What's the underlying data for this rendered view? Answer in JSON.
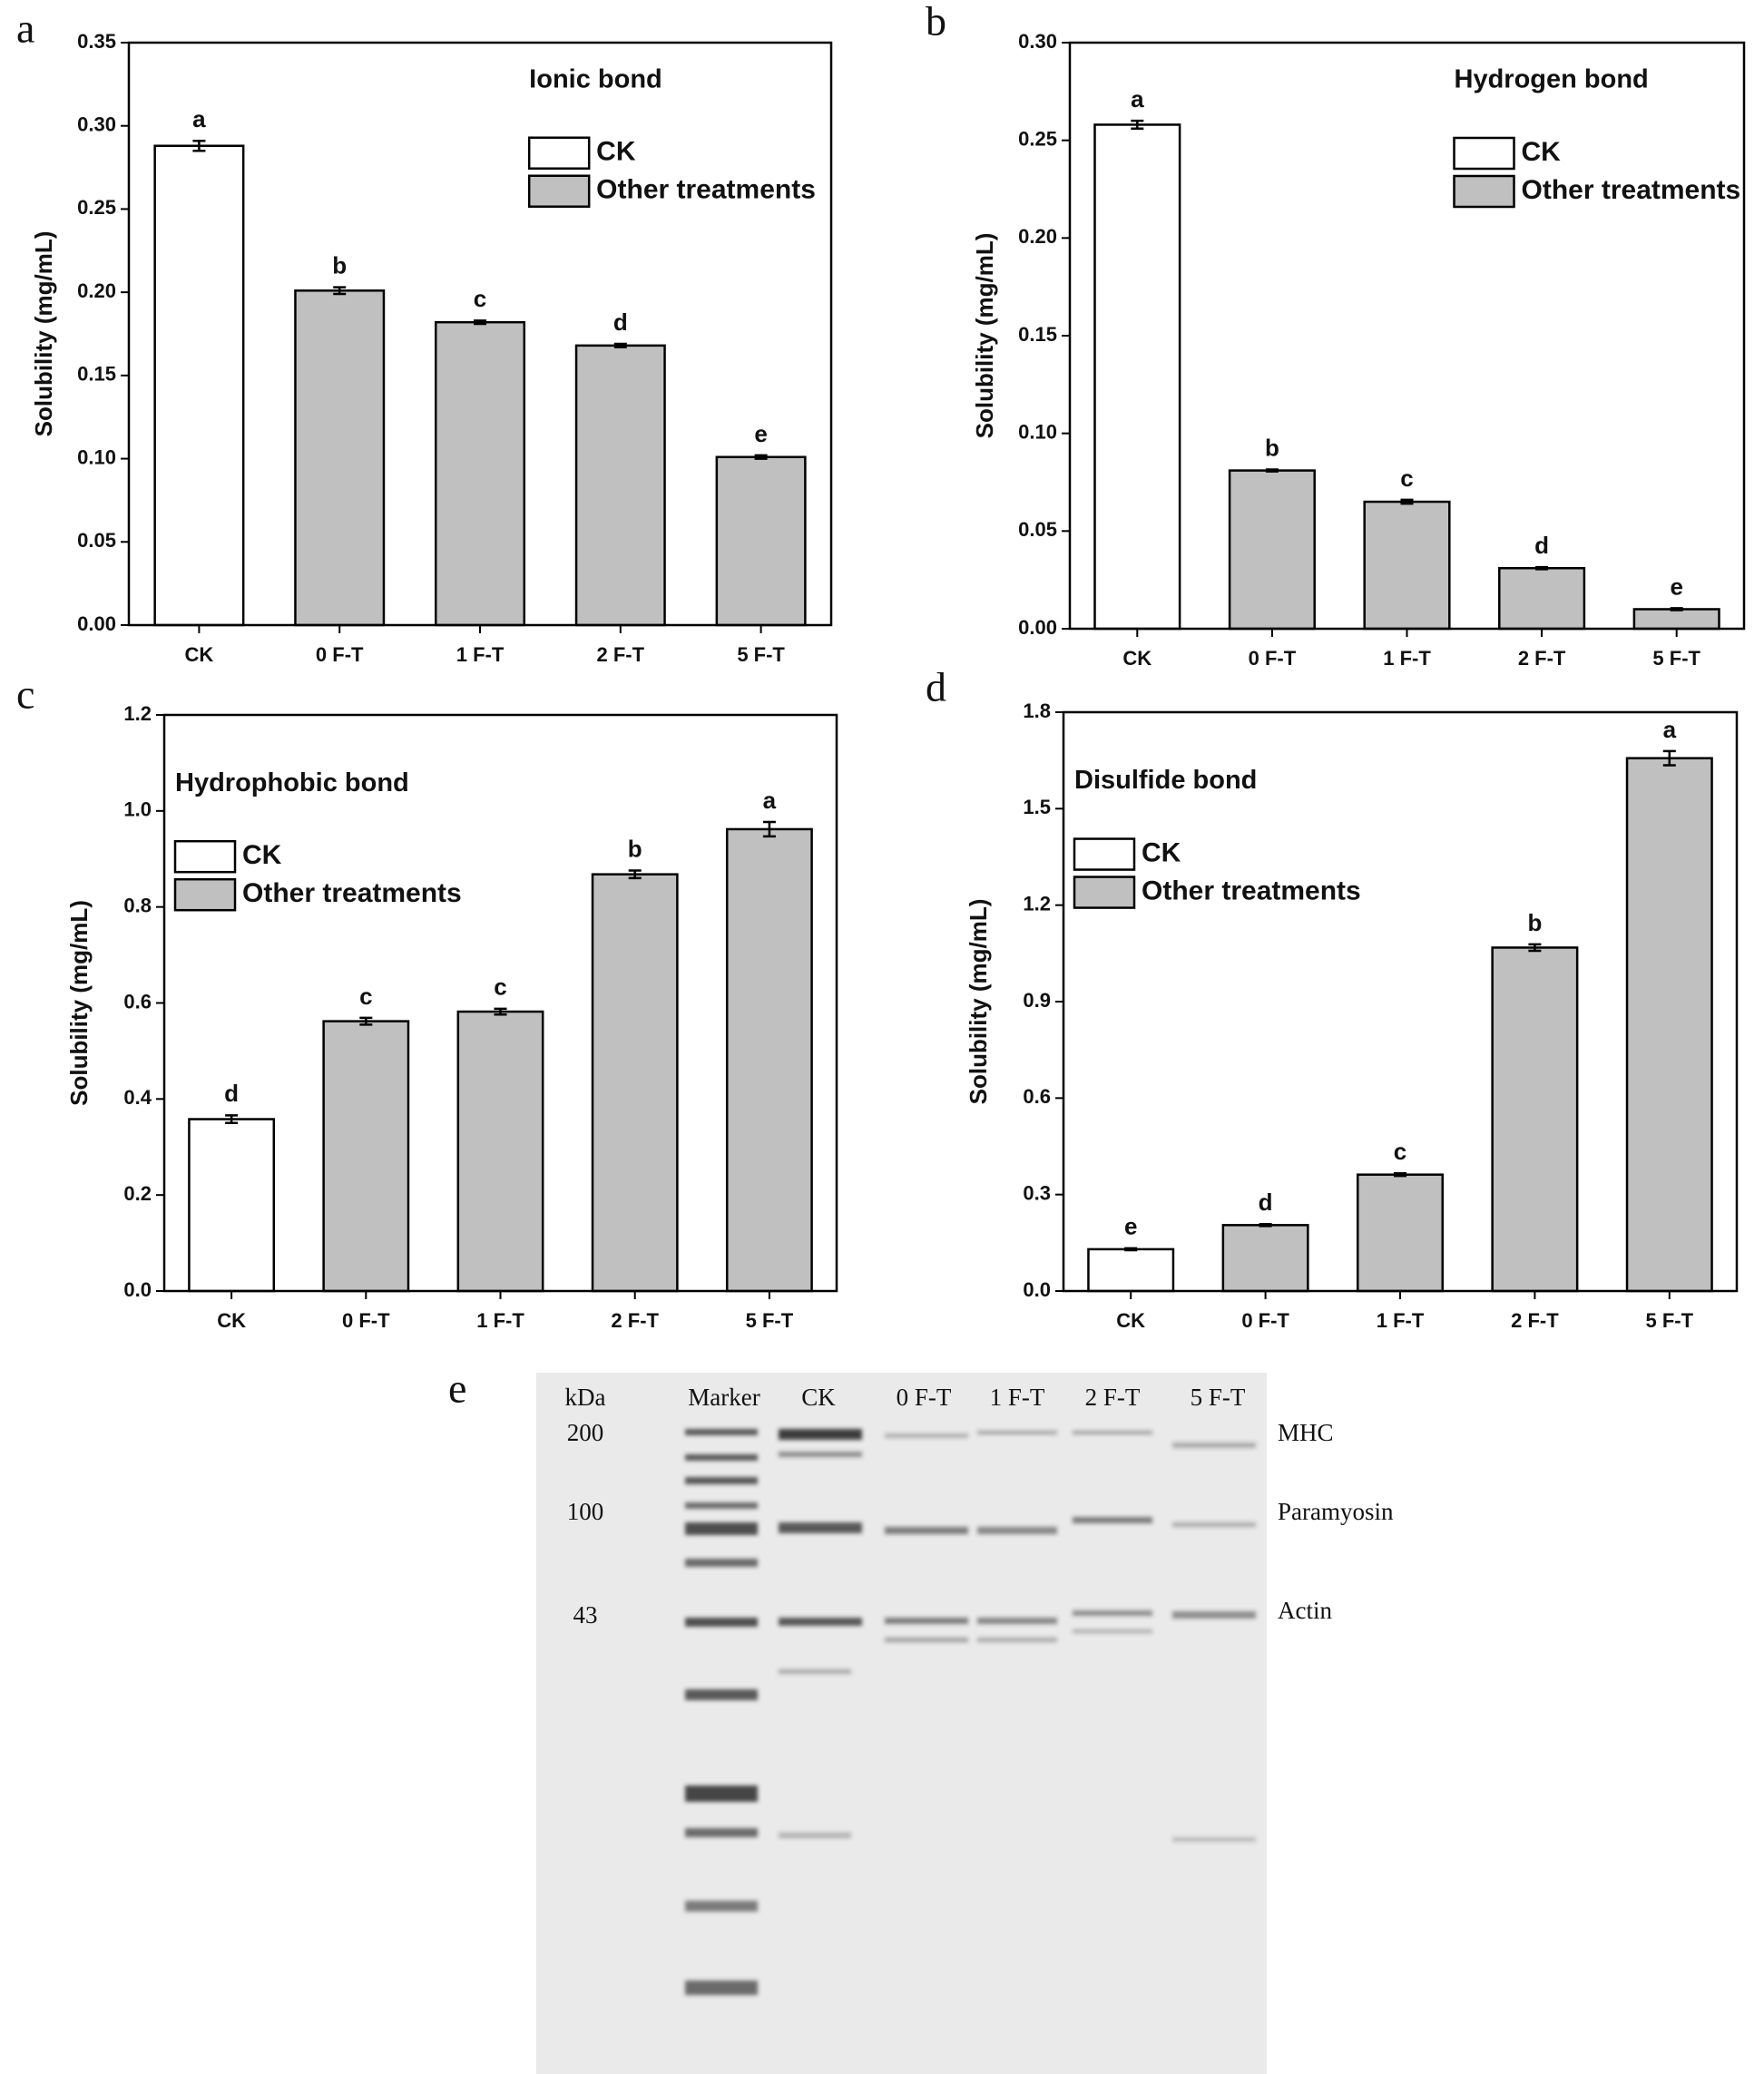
{
  "chart_data": [
    {
      "type": "bar",
      "panel_label": "a",
      "title": "Ionic bond",
      "y_label": "Solubility (mg/mL)",
      "categories": [
        "CK",
        "0 F-T",
        "1 F-T",
        "2 F-T",
        "5 F-T"
      ],
      "series": [
        {
          "name": "CK",
          "color": "#ffffff",
          "values": [
            0.288,
            null,
            null,
            null,
            null
          ],
          "errors": [
            0.003,
            null,
            null,
            null,
            null
          ]
        },
        {
          "name": "Other treatments",
          "color": "#c0c0c0",
          "values": [
            null,
            0.201,
            0.182,
            0.168,
            0.101
          ],
          "errors": [
            null,
            0.002,
            0.001,
            0.001,
            0.001
          ]
        }
      ],
      "annotations": [
        "a",
        "b",
        "c",
        "d",
        "e"
      ],
      "ylim": [
        0,
        0.35
      ],
      "yticks": [
        {
          "value": 0,
          "label": "0.00"
        },
        0.05,
        {
          "value": 0.1,
          "label": "0.10"
        },
        0.15,
        {
          "value": 0.2,
          "label": "0.20"
        },
        0.25,
        {
          "value": 0.3,
          "label": "0.30"
        },
        0.35
      ],
      "legend": "upper right"
    },
    {
      "type": "bar",
      "panel_label": "b",
      "title": "Hydrogen bond",
      "y_label": "Solubility (mg/mL)",
      "categories": [
        "CK",
        "0 F-T",
        "1 F-T",
        "2 F-T",
        "5 F-T"
      ],
      "series": [
        {
          "name": "CK",
          "color": "#ffffff",
          "values": [
            0.258,
            null,
            null,
            null,
            null
          ],
          "errors": [
            0.002,
            null,
            null,
            null,
            null
          ]
        },
        {
          "name": "Other treatments",
          "color": "#c0c0c0",
          "values": [
            null,
            0.081,
            0.065,
            0.031,
            0.01
          ],
          "errors": [
            null,
            0.0005,
            0.001,
            0.0005,
            0.0005
          ]
        }
      ],
      "annotations": [
        "a",
        "b",
        "c",
        "d",
        "e"
      ],
      "ylim": [
        0,
        0.3
      ],
      "yticks": [
        {
          "value": 0,
          "label": "0.00"
        },
        0.05,
        {
          "value": 0.1,
          "label": "0.10"
        },
        0.15,
        {
          "value": 0.2,
          "label": "0.20"
        },
        0.25,
        {
          "value": 0.3,
          "label": "0.30"
        }
      ],
      "legend": "upper right"
    },
    {
      "type": "bar",
      "panel_label": "c",
      "title": "Hydrophobic bond",
      "y_label": "Solubility (mg/mL)",
      "categories": [
        "CK",
        "0 F-T",
        "1 F-T",
        "2 F-T",
        "5 F-T"
      ],
      "series": [
        {
          "name": "CK",
          "color": "#ffffff",
          "values": [
            0.358,
            null,
            null,
            null,
            null
          ],
          "errors": [
            0.008,
            null,
            null,
            null,
            null
          ]
        },
        {
          "name": "Other treatments",
          "color": "#c0c0c0",
          "values": [
            null,
            0.562,
            0.582,
            0.868,
            0.962
          ],
          "errors": [
            null,
            0.007,
            0.006,
            0.008,
            0.015
          ]
        }
      ],
      "annotations": [
        "d",
        "c",
        "c",
        "b",
        "a"
      ],
      "ylim": [
        0,
        1.2
      ],
      "yticks": [
        {
          "value": 0,
          "label": "0.0"
        },
        0.2,
        0.4,
        0.6,
        0.8,
        {
          "value": 1,
          "label": "1.0"
        },
        1.2
      ],
      "legend": "upper left"
    },
    {
      "type": "bar",
      "panel_label": "d",
      "title": "Disulfide bond",
      "y_label": "Solubility (mg/mL)",
      "categories": [
        "CK",
        "0 F-T",
        "1 F-T",
        "2 F-T",
        "5 F-T"
      ],
      "series": [
        {
          "name": "CK",
          "color": "#ffffff",
          "values": [
            0.13,
            null,
            null,
            null,
            null
          ],
          "errors": [
            0.003,
            null,
            null,
            null,
            null
          ]
        },
        {
          "name": "Other treatments",
          "color": "#c0c0c0",
          "values": [
            null,
            0.205,
            0.362,
            1.068,
            1.657
          ],
          "errors": [
            null,
            0.003,
            0.004,
            0.01,
            0.022
          ]
        }
      ],
      "annotations": [
        "e",
        "d",
        "c",
        "b",
        "a"
      ],
      "ylim": [
        0,
        1.8
      ],
      "yticks": [
        {
          "value": 0,
          "label": "0.0"
        },
        0.3,
        0.6,
        0.9,
        1.2,
        1.5,
        1.8
      ],
      "legend": "upper left"
    }
  ],
  "gel": {
    "panel_label": "e",
    "unit": "kDa",
    "lanes": [
      "Marker",
      "CK",
      "0 F-T",
      "1 F-T",
      "2 F-T",
      "5 F-T"
    ],
    "sizes": [
      "200",
      "100",
      "43"
    ],
    "proteins": [
      "MHC",
      "Paramyosin",
      "Actin"
    ]
  }
}
